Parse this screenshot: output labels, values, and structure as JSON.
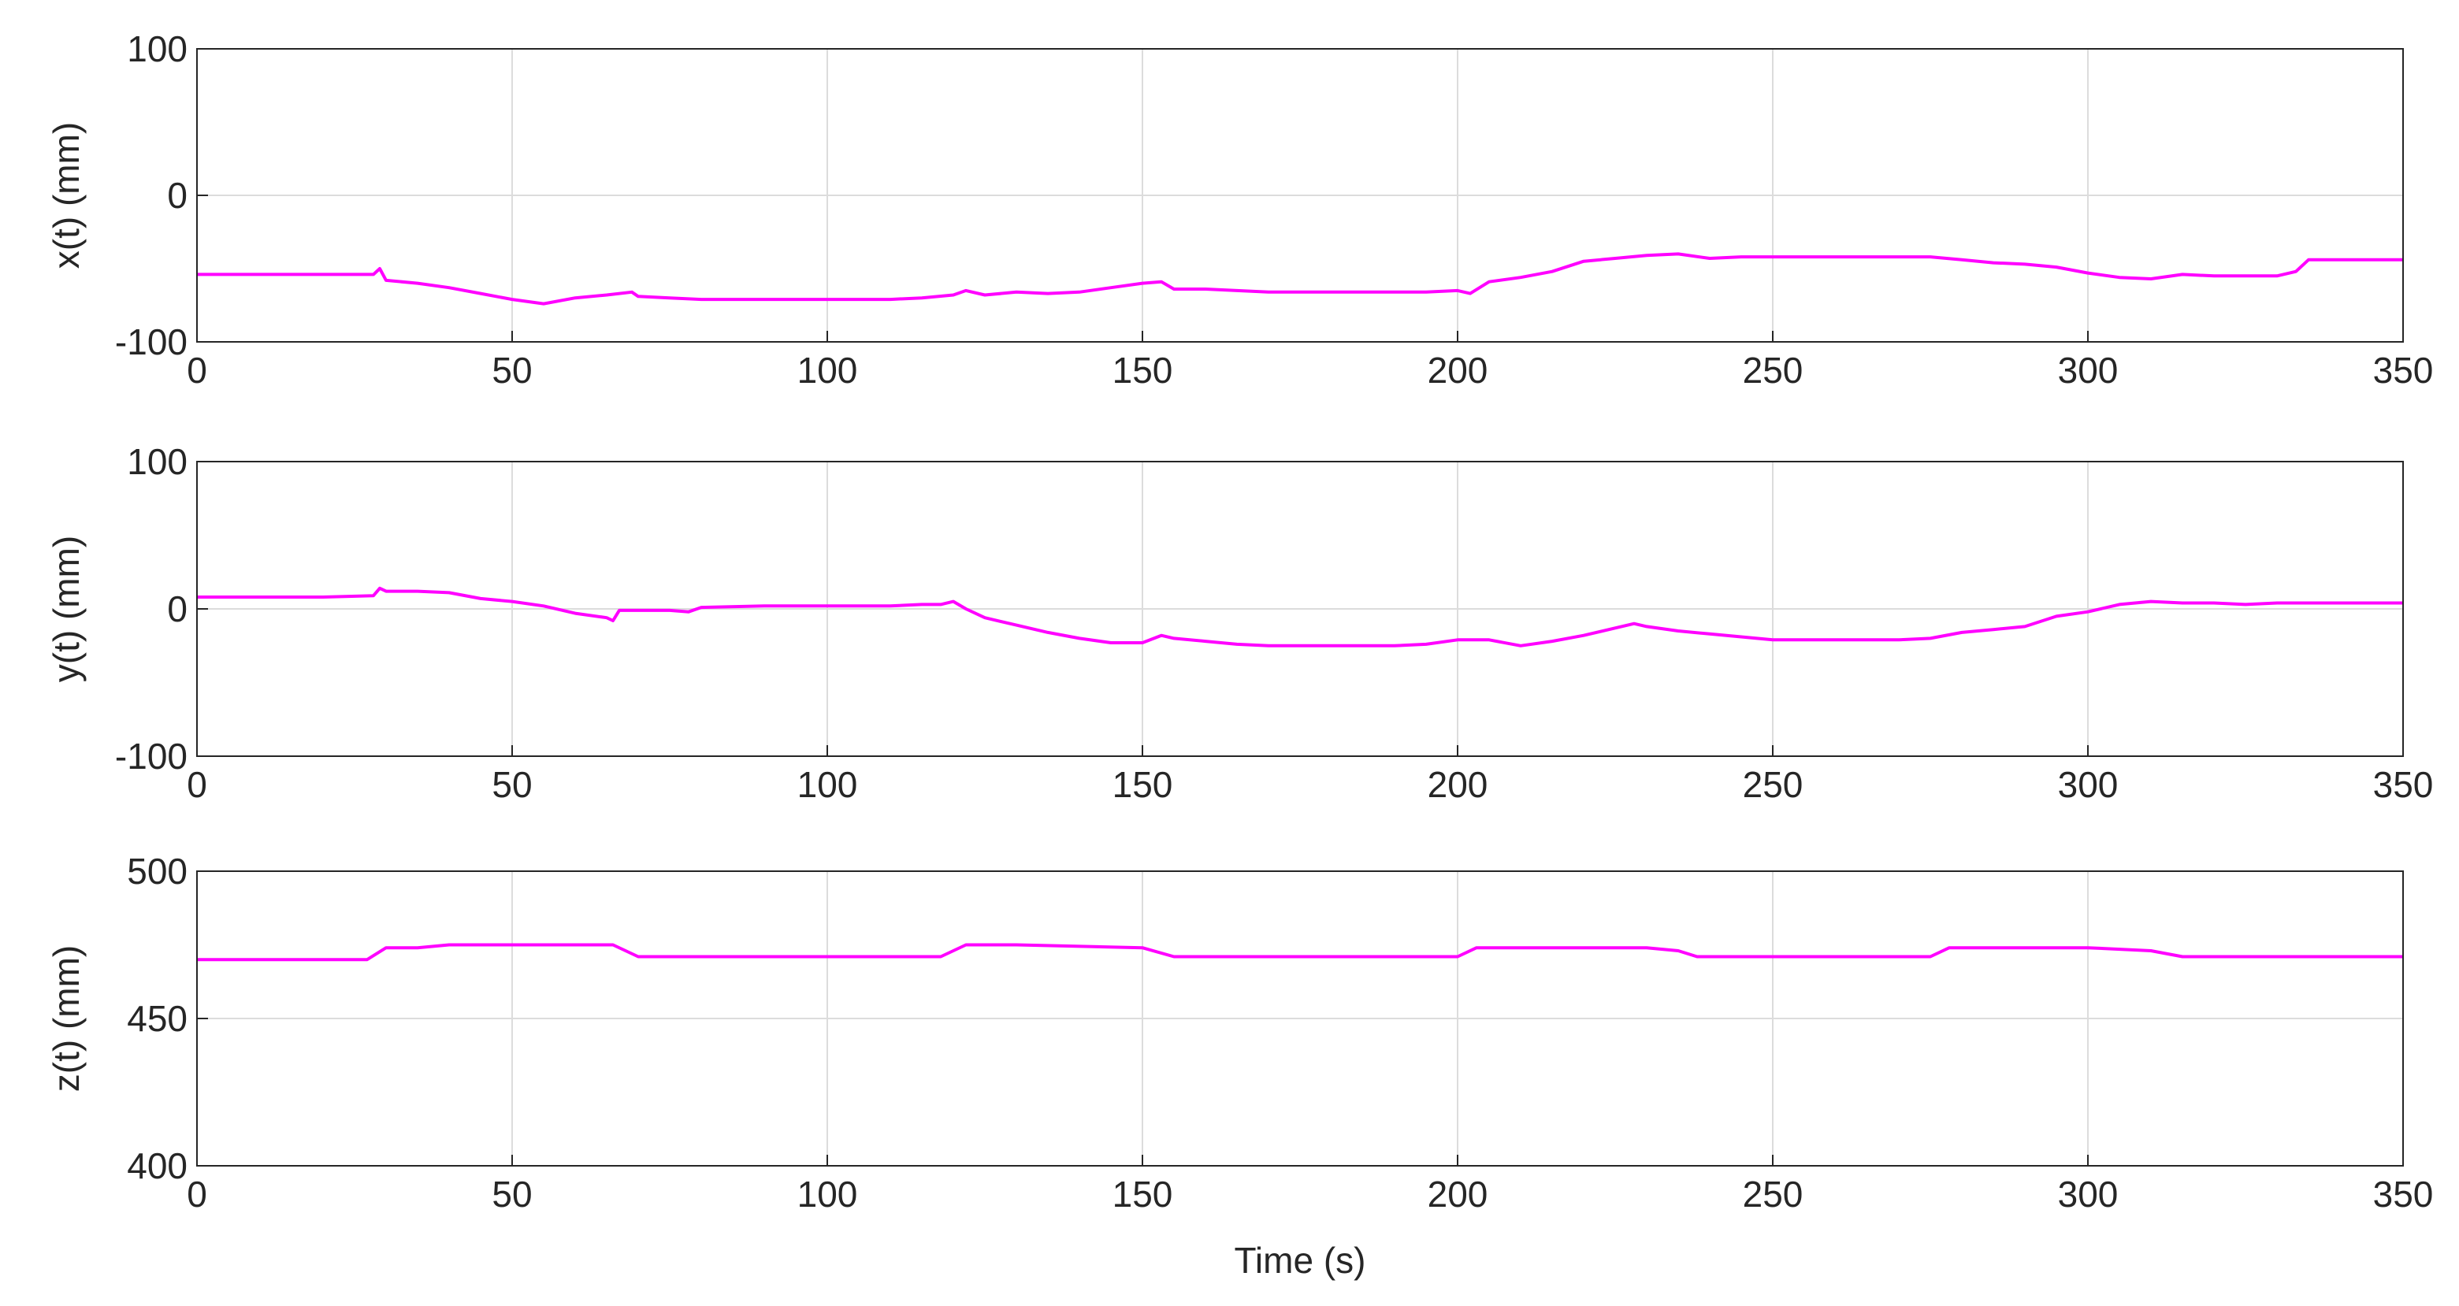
{
  "chart_data": [
    {
      "type": "line",
      "y_label": "x(t) (mm)",
      "color": "#ff00ff",
      "grid": true,
      "xlim": [
        0,
        350
      ],
      "xticks": [
        0,
        50,
        100,
        150,
        200,
        250,
        300,
        350
      ],
      "ylim": [
        -100,
        100
      ],
      "yticks": [
        -100,
        0,
        100
      ],
      "x": [
        0,
        10,
        20,
        28,
        29,
        30,
        35,
        40,
        45,
        50,
        55,
        60,
        65,
        69,
        70,
        75,
        80,
        90,
        100,
        110,
        115,
        120,
        122,
        125,
        130,
        135,
        140,
        145,
        150,
        153,
        155,
        160,
        165,
        170,
        180,
        190,
        195,
        200,
        202,
        205,
        210,
        215,
        220,
        225,
        230,
        235,
        240,
        245,
        250,
        260,
        270,
        275,
        280,
        285,
        290,
        295,
        300,
        305,
        310,
        315,
        320,
        325,
        330,
        333,
        335,
        340,
        350
      ],
      "values": [
        -54,
        -54,
        -54,
        -54,
        -50,
        -58,
        -60,
        -63,
        -67,
        -71,
        -74,
        -70,
        -68,
        -66,
        -69,
        -70,
        -71,
        -71,
        -71,
        -71,
        -70,
        -68,
        -65,
        -68,
        -66,
        -67,
        -66,
        -63,
        -60,
        -59,
        -64,
        -64,
        -65,
        -66,
        -66,
        -66,
        -66,
        -65,
        -67,
        -59,
        -56,
        -52,
        -45,
        -43,
        -41,
        -40,
        -43,
        -42,
        -42,
        -42,
        -42,
        -42,
        -44,
        -46,
        -47,
        -49,
        -53,
        -56,
        -57,
        -54,
        -55,
        -55,
        -55,
        -52,
        -44,
        -44,
        -44
      ]
    },
    {
      "type": "line",
      "y_label": "y(t) (mm)",
      "color": "#ff00ff",
      "grid": true,
      "xlim": [
        0,
        350
      ],
      "xticks": [
        0,
        50,
        100,
        150,
        200,
        250,
        300,
        350
      ],
      "ylim": [
        -100,
        100
      ],
      "yticks": [
        -100,
        0,
        100
      ],
      "x": [
        0,
        10,
        20,
        28,
        29,
        30,
        35,
        40,
        45,
        50,
        55,
        60,
        65,
        66,
        67,
        70,
        75,
        78,
        80,
        90,
        100,
        110,
        115,
        118,
        120,
        122,
        125,
        130,
        135,
        140,
        145,
        150,
        153,
        155,
        160,
        165,
        170,
        180,
        190,
        195,
        200,
        205,
        210,
        215,
        220,
        225,
        228,
        230,
        235,
        240,
        245,
        250,
        260,
        270,
        275,
        280,
        285,
        290,
        295,
        300,
        305,
        310,
        315,
        320,
        325,
        330,
        340,
        350
      ],
      "values": [
        8,
        8,
        8,
        9,
        14,
        12,
        12,
        11,
        7,
        5,
        2,
        -3,
        -6,
        -8,
        -1,
        -1,
        -1,
        -2,
        1,
        2,
        2,
        2,
        3,
        3,
        5,
        0,
        -6,
        -11,
        -16,
        -20,
        -23,
        -23,
        -18,
        -20,
        -22,
        -24,
        -25,
        -25,
        -25,
        -24,
        -21,
        -21,
        -25,
        -22,
        -18,
        -13,
        -10,
        -12,
        -15,
        -17,
        -19,
        -21,
        -21,
        -21,
        -20,
        -16,
        -14,
        -12,
        -5,
        -2,
        3,
        5,
        4,
        4,
        3,
        4,
        4,
        4
      ]
    },
    {
      "type": "line",
      "y_label": "z(t) (mm)",
      "x_label": "Time (s)",
      "color": "#ff00ff",
      "grid": true,
      "xlim": [
        0,
        350
      ],
      "xticks": [
        0,
        50,
        100,
        150,
        200,
        250,
        300,
        350
      ],
      "ylim": [
        400,
        500
      ],
      "yticks": [
        400,
        450,
        500
      ],
      "x": [
        0,
        27,
        30,
        35,
        40,
        66,
        70,
        80,
        100,
        118,
        122,
        130,
        150,
        155,
        160,
        180,
        200,
        203,
        230,
        235,
        238,
        240,
        260,
        275,
        278,
        300,
        310,
        315,
        320,
        350
      ],
      "values": [
        470,
        470,
        474,
        474,
        475,
        475,
        471,
        471,
        471,
        471,
        475,
        475,
        474,
        471,
        471,
        471,
        471,
        474,
        474,
        473,
        471,
        471,
        471,
        471,
        474,
        474,
        473,
        471,
        471,
        471
      ]
    }
  ]
}
